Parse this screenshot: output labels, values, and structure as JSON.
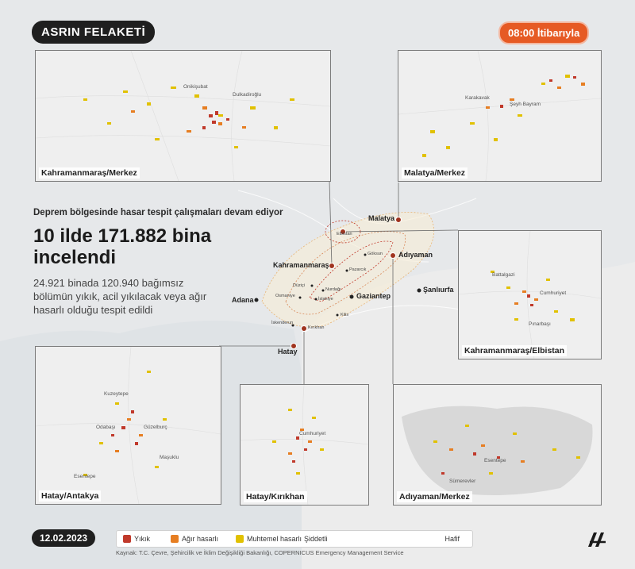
{
  "header": {
    "title": "ASRIN FELAKETİ",
    "time": "08:00 İtibarıyla"
  },
  "summary": {
    "subtitle": "Deprem bölgesinde hasar tespit çalışmaları devam ediyor",
    "headline": "10 ilde 171.882 bina incelendi",
    "description": "24.921 binada 120.940 bağımsız bölümün yıkık, acil yıkılacak veya ağır hasarlı olduğu tespit edildi"
  },
  "insets": [
    {
      "label": "Kahramanmaraş/Merkez",
      "places": [
        "Onikişubat",
        "Dulkadiroğlu"
      ]
    },
    {
      "label": "Malatya/Merkez",
      "places": [
        "Karakavak",
        "Şeyh Bayram"
      ]
    },
    {
      "label": "Kahramanmaraş/Elbistan",
      "places": [
        "Battalgazi",
        "Cumhuriyet",
        "Pınarbaşı"
      ]
    },
    {
      "label": "Hatay/Antakya",
      "places": [
        "Kuzeytepe",
        "Odabaşı",
        "Güzelburç",
        "Maşuklu",
        "Esentepe"
      ]
    },
    {
      "label": "Hatay/Kırıkhan",
      "places": [
        "Cumhuriyet"
      ]
    },
    {
      "label": "Adıyaman/Merkez",
      "places": [
        "Esentepe",
        "Sümerevler"
      ]
    }
  ],
  "main_map": {
    "cities": [
      "Malatya",
      "Kahramanmaraş",
      "Adıyaman",
      "Adana",
      "Gaziantep",
      "Şanlıurfa",
      "Hatay"
    ],
    "towns": [
      "Elbistan",
      "Göksun",
      "Pazarcık",
      "Düziçi",
      "Nurdağı",
      "Osmaniye",
      "İslahiye",
      "Kilis",
      "İskenderun",
      "Kırıkhan"
    ]
  },
  "legend": {
    "items": [
      {
        "label": "Yıkık",
        "color": "#c0392b"
      },
      {
        "label": "Ağır hasarlı",
        "color": "#e67e22"
      },
      {
        "label": "Muhtemel hasarlı",
        "color": "#e1c100"
      }
    ],
    "scale_start": "Şiddetli",
    "scale_end": "Hafif"
  },
  "footer": {
    "date": "12.02.2023",
    "source": "Kaynak: T.C. Çevre, Şehircilik ve İklim Değişikliği Bakanlığı, COPERNICUS Emergency Management Service",
    "logo": "AA"
  }
}
